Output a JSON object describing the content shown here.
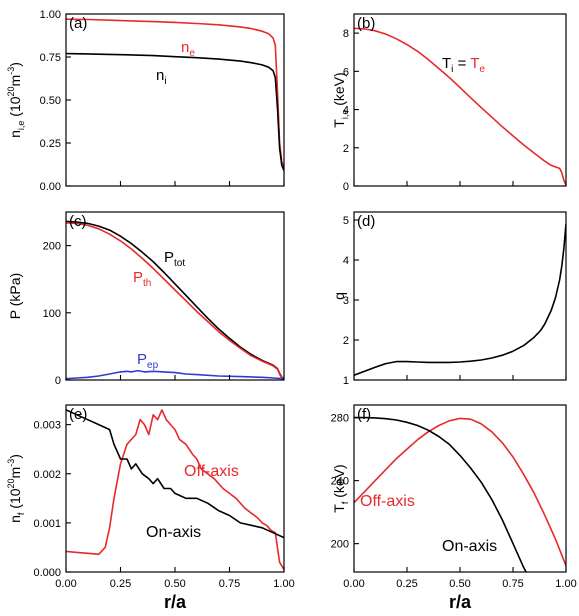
{
  "colors": {
    "black": "#000000",
    "red": "#e8292b",
    "blue": "#2f3bd6",
    "axis": "#000000",
    "background": "#ffffff"
  },
  "shared": {
    "xlabel": "r/a",
    "xticks": [
      "0.00",
      "0.25",
      "0.50",
      "0.75",
      "1.00"
    ]
  },
  "chart_data": [
    {
      "panel": "(a)",
      "type": "line",
      "ylabel": "n",
      "ylabel_sub": "i,e",
      "ylabel_rest": " (10",
      "ylabel_sup": "20",
      "ylabel_unit": "m",
      "ylabel_sup2": "-3",
      "ylabel_end": ")",
      "xlim": [
        0,
        1
      ],
      "ylim": [
        0,
        1.0
      ],
      "yticks": [
        0,
        0.25,
        0.5,
        0.75,
        1.0
      ],
      "ytick_labels": [
        "0.00",
        "0.25",
        "0.50",
        "0.75",
        "1.00"
      ],
      "annotations": [
        {
          "text": "n",
          "sub": "e",
          "color": "red"
        },
        {
          "text": "n",
          "sub": "i",
          "color": "black"
        }
      ],
      "series": [
        {
          "key": "ne",
          "color": "red",
          "x": [
            0,
            0.1,
            0.2,
            0.3,
            0.4,
            0.5,
            0.6,
            0.7,
            0.8,
            0.85,
            0.9,
            0.93,
            0.95,
            0.96,
            0.97,
            0.98,
            0.99,
            1.0
          ],
          "y": [
            0.97,
            0.968,
            0.964,
            0.96,
            0.956,
            0.951,
            0.945,
            0.937,
            0.925,
            0.915,
            0.9,
            0.885,
            0.86,
            0.82,
            0.55,
            0.25,
            0.14,
            0.11
          ]
        },
        {
          "key": "ni",
          "color": "black",
          "x": [
            0,
            0.1,
            0.2,
            0.3,
            0.4,
            0.5,
            0.6,
            0.7,
            0.8,
            0.85,
            0.9,
            0.93,
            0.95,
            0.96,
            0.97,
            0.98,
            0.99,
            1.0
          ],
          "y": [
            0.77,
            0.768,
            0.765,
            0.762,
            0.758,
            0.752,
            0.746,
            0.738,
            0.726,
            0.717,
            0.704,
            0.69,
            0.67,
            0.63,
            0.45,
            0.22,
            0.12,
            0.09
          ]
        }
      ]
    },
    {
      "panel": "(b)",
      "type": "line",
      "ylabel": "T",
      "ylabel_sub": "i,e",
      "ylabel_rest": " (keV)",
      "xlim": [
        0,
        1
      ],
      "ylim": [
        0,
        9
      ],
      "yticks": [
        0,
        2,
        4,
        6,
        8
      ],
      "ytick_labels": [
        "0",
        "2",
        "4",
        "6",
        "8"
      ],
      "annotations": [
        {
          "text": "T",
          "sub": "i",
          "color": "black"
        },
        {
          "text": " = ",
          "color": "black"
        },
        {
          "text": "T",
          "sub": "e",
          "color": "red"
        }
      ],
      "series": [
        {
          "key": "T",
          "color": "red",
          "x": [
            0,
            0.05,
            0.1,
            0.15,
            0.2,
            0.25,
            0.3,
            0.35,
            0.4,
            0.45,
            0.5,
            0.55,
            0.6,
            0.65,
            0.7,
            0.75,
            0.8,
            0.85,
            0.9,
            0.93,
            0.95,
            0.97,
            0.98,
            0.99,
            1.0
          ],
          "y": [
            8.25,
            8.22,
            8.12,
            7.95,
            7.7,
            7.4,
            7.05,
            6.62,
            6.15,
            5.67,
            5.15,
            4.62,
            4.1,
            3.6,
            3.1,
            2.62,
            2.15,
            1.72,
            1.3,
            1.08,
            1.0,
            0.92,
            0.7,
            0.3,
            0.05
          ]
        }
      ]
    },
    {
      "panel": "(c)",
      "type": "line",
      "ylabel": "P (kPa)",
      "xlim": [
        0,
        1
      ],
      "ylim": [
        0,
        250
      ],
      "yticks": [
        0,
        100,
        200
      ],
      "ytick_labels": [
        "0",
        "100",
        "200"
      ],
      "annotations": [
        {
          "text": "P",
          "sub": "tot",
          "color": "black"
        },
        {
          "text": "P",
          "sub": "th",
          "color": "red"
        },
        {
          "text": "P",
          "sub": "ep",
          "color": "blue"
        }
      ],
      "series": [
        {
          "key": "Ptot",
          "color": "black",
          "x": [
            0,
            0.05,
            0.1,
            0.15,
            0.2,
            0.25,
            0.3,
            0.35,
            0.4,
            0.45,
            0.5,
            0.55,
            0.6,
            0.65,
            0.7,
            0.75,
            0.8,
            0.85,
            0.9,
            0.93,
            0.95,
            0.97,
            0.98,
            0.99,
            1.0
          ],
          "y": [
            236,
            235,
            233,
            229,
            223,
            214,
            203,
            190,
            176,
            160,
            143,
            126,
            109,
            92,
            76,
            62,
            49,
            38,
            29,
            25,
            22,
            17,
            10,
            4,
            1
          ]
        },
        {
          "key": "Pth",
          "color": "red",
          "x": [
            0,
            0.05,
            0.1,
            0.15,
            0.2,
            0.25,
            0.3,
            0.35,
            0.4,
            0.45,
            0.5,
            0.55,
            0.6,
            0.65,
            0.7,
            0.75,
            0.8,
            0.85,
            0.9,
            0.93,
            0.95,
            0.97,
            0.98,
            0.99,
            1.0
          ],
          "y": [
            234,
            233,
            230,
            225,
            217,
            207,
            195,
            181,
            166,
            150,
            134,
            118,
            102,
            87,
            72,
            59,
            47,
            36,
            28,
            24,
            21,
            16,
            9,
            3,
            0
          ]
        },
        {
          "key": "Pep",
          "color": "blue",
          "x": [
            0,
            0.05,
            0.1,
            0.15,
            0.2,
            0.25,
            0.28,
            0.3,
            0.33,
            0.36,
            0.4,
            0.45,
            0.5,
            0.55,
            0.6,
            0.7,
            0.8,
            0.9,
            0.95,
            1.0
          ],
          "y": [
            2,
            3,
            4,
            6,
            9,
            12,
            13,
            12,
            14,
            12,
            13,
            12,
            11,
            9,
            8,
            6,
            5,
            4,
            3,
            2
          ]
        }
      ]
    },
    {
      "panel": "(d)",
      "type": "line",
      "ylabel": "q",
      "xlim": [
        0,
        1
      ],
      "ylim": [
        1,
        5.2
      ],
      "yticks": [
        1,
        2,
        3,
        4,
        5
      ],
      "ytick_labels": [
        "1",
        "2",
        "3",
        "4",
        "5"
      ],
      "annotations": [],
      "series": [
        {
          "key": "q",
          "color": "black",
          "x": [
            0,
            0.05,
            0.1,
            0.15,
            0.2,
            0.25,
            0.3,
            0.35,
            0.4,
            0.45,
            0.5,
            0.55,
            0.6,
            0.65,
            0.7,
            0.75,
            0.8,
            0.85,
            0.88,
            0.9,
            0.93,
            0.95,
            0.97,
            0.98,
            0.99,
            1.0
          ],
          "y": [
            1.12,
            1.22,
            1.32,
            1.41,
            1.46,
            1.46,
            1.45,
            1.44,
            1.44,
            1.44,
            1.45,
            1.47,
            1.5,
            1.55,
            1.62,
            1.72,
            1.86,
            2.07,
            2.24,
            2.4,
            2.74,
            3.05,
            3.5,
            3.85,
            4.3,
            4.9
          ]
        }
      ]
    },
    {
      "panel": "(e)",
      "type": "line",
      "ylabel": "n",
      "ylabel_sub": "f",
      "ylabel_rest": " (10",
      "ylabel_sup": "20",
      "ylabel_unit": "m",
      "ylabel_sup2": "-3",
      "ylabel_end": ")",
      "xlim": [
        0,
        1
      ],
      "ylim": [
        0,
        0.0034
      ],
      "yticks": [
        0,
        0.001,
        0.002,
        0.003
      ],
      "ytick_labels": [
        "0.000",
        "0.001",
        "0.002",
        "0.003"
      ],
      "annotations": [
        {
          "text": "Off-axis",
          "color": "red"
        },
        {
          "text": "On-axis",
          "color": "black"
        }
      ],
      "series": [
        {
          "key": "off",
          "color": "red",
          "x": [
            0,
            0.05,
            0.1,
            0.15,
            0.18,
            0.2,
            0.22,
            0.25,
            0.28,
            0.3,
            0.32,
            0.34,
            0.36,
            0.38,
            0.4,
            0.42,
            0.44,
            0.46,
            0.48,
            0.5,
            0.52,
            0.55,
            0.58,
            0.6,
            0.62,
            0.65,
            0.68,
            0.7,
            0.72,
            0.75,
            0.78,
            0.8,
            0.82,
            0.85,
            0.88,
            0.9,
            0.92,
            0.94,
            0.96,
            0.98,
            1.0
          ],
          "y": [
            0.00042,
            0.0004,
            0.00038,
            0.00036,
            0.0005,
            0.0009,
            0.0015,
            0.0022,
            0.0026,
            0.0027,
            0.0028,
            0.0031,
            0.003,
            0.0028,
            0.0032,
            0.0031,
            0.0033,
            0.0031,
            0.003,
            0.0029,
            0.0027,
            0.0026,
            0.0024,
            0.0023,
            0.0021,
            0.002,
            0.0019,
            0.0018,
            0.0017,
            0.0016,
            0.0015,
            0.0014,
            0.0013,
            0.0012,
            0.0011,
            0.001,
            0.00095,
            0.00085,
            0.0008,
            0.0002,
            5e-05
          ]
        },
        {
          "key": "on",
          "color": "black",
          "x": [
            0,
            0.05,
            0.1,
            0.15,
            0.2,
            0.22,
            0.25,
            0.28,
            0.3,
            0.32,
            0.35,
            0.38,
            0.4,
            0.42,
            0.45,
            0.48,
            0.5,
            0.55,
            0.6,
            0.65,
            0.7,
            0.75,
            0.8,
            0.85,
            0.9,
            0.95,
            1.0
          ],
          "y": [
            0.0033,
            0.0032,
            0.0031,
            0.003,
            0.0029,
            0.0026,
            0.0023,
            0.0023,
            0.0021,
            0.0022,
            0.002,
            0.0019,
            0.0018,
            0.0019,
            0.0017,
            0.0017,
            0.0016,
            0.0015,
            0.0015,
            0.0014,
            0.00125,
            0.00115,
            0.001,
            0.00095,
            0.0009,
            0.0008,
            0.0007
          ]
        }
      ]
    },
    {
      "panel": "(f)",
      "type": "line",
      "ylabel": "T",
      "ylabel_sub": "f",
      "ylabel_rest": " (keV)",
      "xlim": [
        0,
        1
      ],
      "ylim": [
        182,
        288
      ],
      "yticks": [
        200,
        240,
        280
      ],
      "ytick_labels": [
        "200",
        "240",
        "280"
      ],
      "annotations": [
        {
          "text": "Off-axis",
          "color": "red"
        },
        {
          "text": "On-axis",
          "color": "black"
        }
      ],
      "series": [
        {
          "key": "off",
          "color": "red",
          "x": [
            0,
            0.05,
            0.1,
            0.15,
            0.2,
            0.25,
            0.3,
            0.35,
            0.4,
            0.45,
            0.5,
            0.55,
            0.6,
            0.65,
            0.7,
            0.75,
            0.8,
            0.85,
            0.9,
            0.95,
            1.0
          ],
          "y": [
            226,
            233,
            240,
            247,
            254,
            260,
            266,
            271,
            275,
            278,
            279.5,
            279,
            276,
            271,
            264,
            255,
            244,
            232,
            218,
            203,
            186
          ]
        },
        {
          "key": "on",
          "color": "black",
          "x": [
            0,
            0.05,
            0.1,
            0.15,
            0.2,
            0.25,
            0.3,
            0.35,
            0.4,
            0.45,
            0.5,
            0.55,
            0.6,
            0.65,
            0.7,
            0.75,
            0.8,
            0.82
          ],
          "y": [
            280,
            280,
            279.8,
            279.3,
            278.5,
            277,
            275,
            272,
            268,
            263,
            256,
            248,
            239,
            228,
            215,
            200,
            185,
            180
          ]
        }
      ]
    }
  ]
}
